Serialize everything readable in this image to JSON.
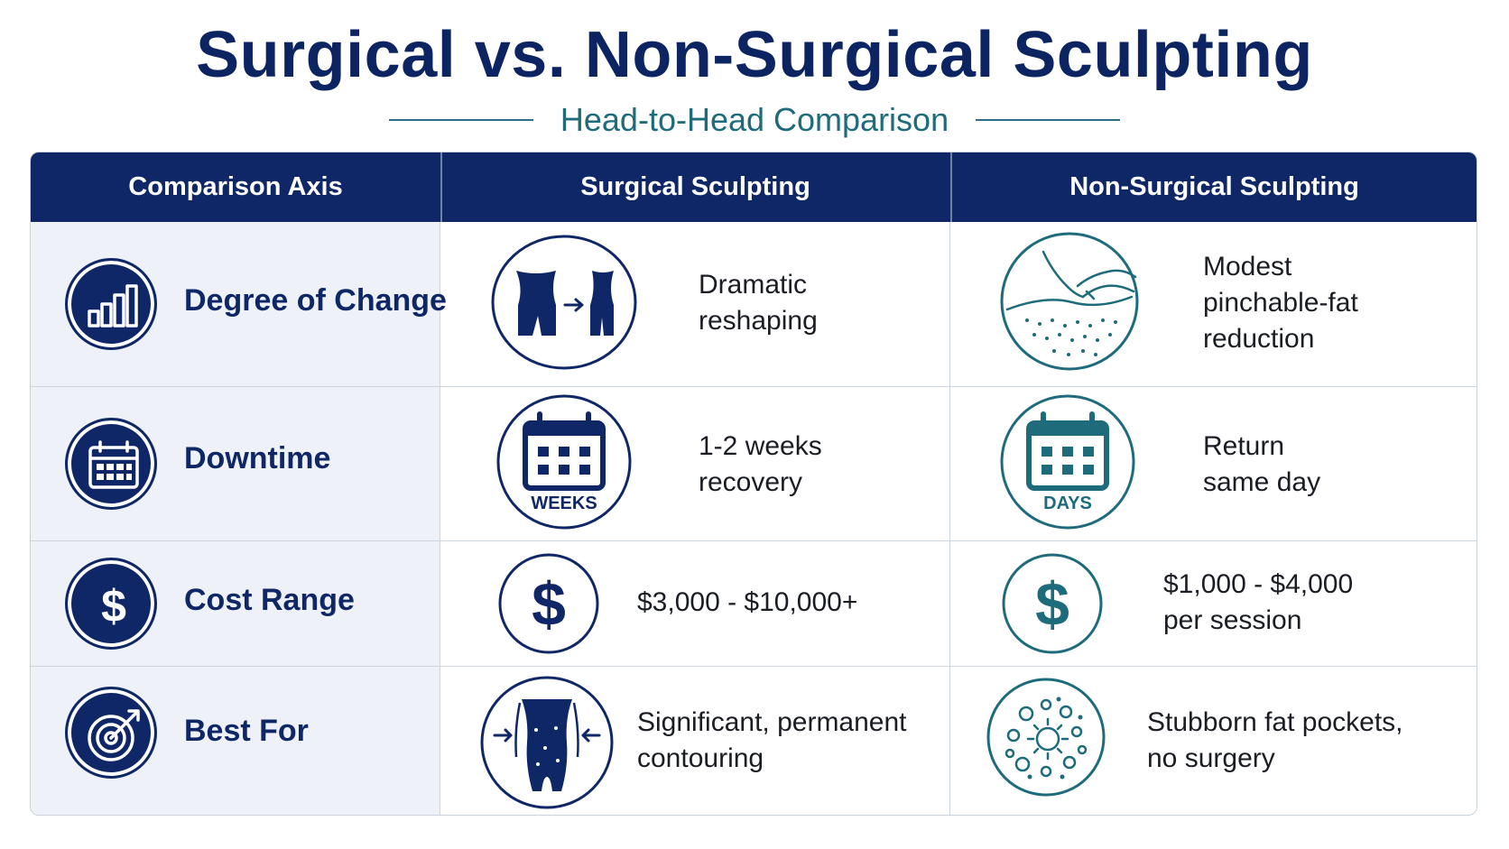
{
  "title": "Surgical vs. Non-Surgical Sculpting",
  "subtitle": "Head-to-Head Comparison",
  "colors": {
    "navy": "#0f2766",
    "teal": "#1d6b7b",
    "axis_bg": "#eef2f8"
  },
  "headers": {
    "axis": "Comparison Axis",
    "surgical": "Surgical Sculpting",
    "non_surgical": "Non-Surgical Sculpting"
  },
  "rows": [
    {
      "axis": "Degree of Change",
      "axis_icon": "bar-chart-icon",
      "surgical": "Dramatic\nreshaping",
      "surgical_icon": "body-reshape-icon",
      "non_surgical": "Modest\npinchable-fat\nreduction",
      "non_surgical_icon": "pinch-skin-icon"
    },
    {
      "axis": "Downtime",
      "axis_icon": "calendar-icon",
      "surgical": "1-2 weeks\nrecovery",
      "surgical_icon": "calendar-weeks-icon",
      "surgical_icon_label": "WEEKS",
      "non_surgical": "Return\nsame day",
      "non_surgical_icon": "calendar-days-icon",
      "non_surgical_icon_label": "DAYS"
    },
    {
      "axis": "Cost Range",
      "axis_icon": "dollar-icon",
      "surgical": "$3,000 - $10,000+",
      "surgical_icon": "dollar-icon",
      "non_surgical": "$1,000 - $4,000\n per session",
      "non_surgical_icon": "dollar-icon"
    },
    {
      "axis": "Best For",
      "axis_icon": "target-icon",
      "surgical": "Significant, permanent\ncontouring",
      "surgical_icon": "waist-contour-icon",
      "non_surgical": "Stubborn fat pockets,\nno surgery",
      "non_surgical_icon": "fat-cells-icon"
    }
  ]
}
